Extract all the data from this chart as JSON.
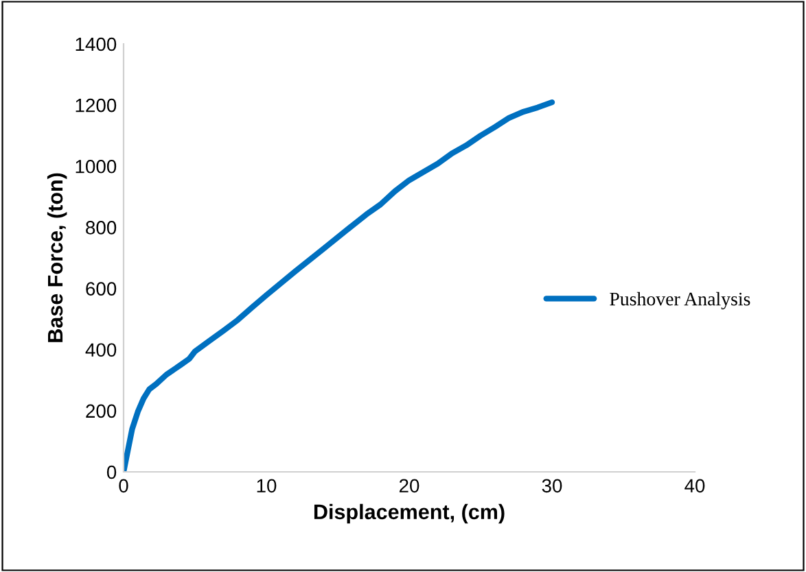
{
  "chart_data": {
    "type": "line",
    "xlabel": "Displacement, (cm)",
    "ylabel": "Base Force, (ton)",
    "series": [
      {
        "name": "Pushover Analysis",
        "color": "#0070c0",
        "x": [
          0,
          0.3,
          0.6,
          1,
          1.4,
          1.8,
          2.3,
          3,
          4,
          4.6,
          5,
          6,
          7,
          8,
          9,
          10,
          12,
          14,
          16,
          17,
          18,
          19,
          20,
          22,
          23,
          24,
          25,
          26,
          27,
          28,
          29,
          30
        ],
        "values": [
          0,
          70,
          140,
          197,
          240,
          270,
          288,
          318,
          350,
          370,
          394,
          428,
          462,
          497,
          538,
          578,
          655,
          730,
          805,
          842,
          875,
          918,
          954,
          1008,
          1042,
          1068,
          1100,
          1128,
          1158,
          1178,
          1192,
          1209
        ]
      }
    ],
    "xlim": [
      0,
      40
    ],
    "ylim": [
      0,
      1400
    ],
    "xticks": [
      0,
      10,
      20,
      30,
      40
    ],
    "yticks": [
      0,
      200,
      400,
      600,
      800,
      1000,
      1200,
      1400
    ],
    "legend": "right",
    "grid": false,
    "line_style": "solid",
    "marker": "none"
  }
}
